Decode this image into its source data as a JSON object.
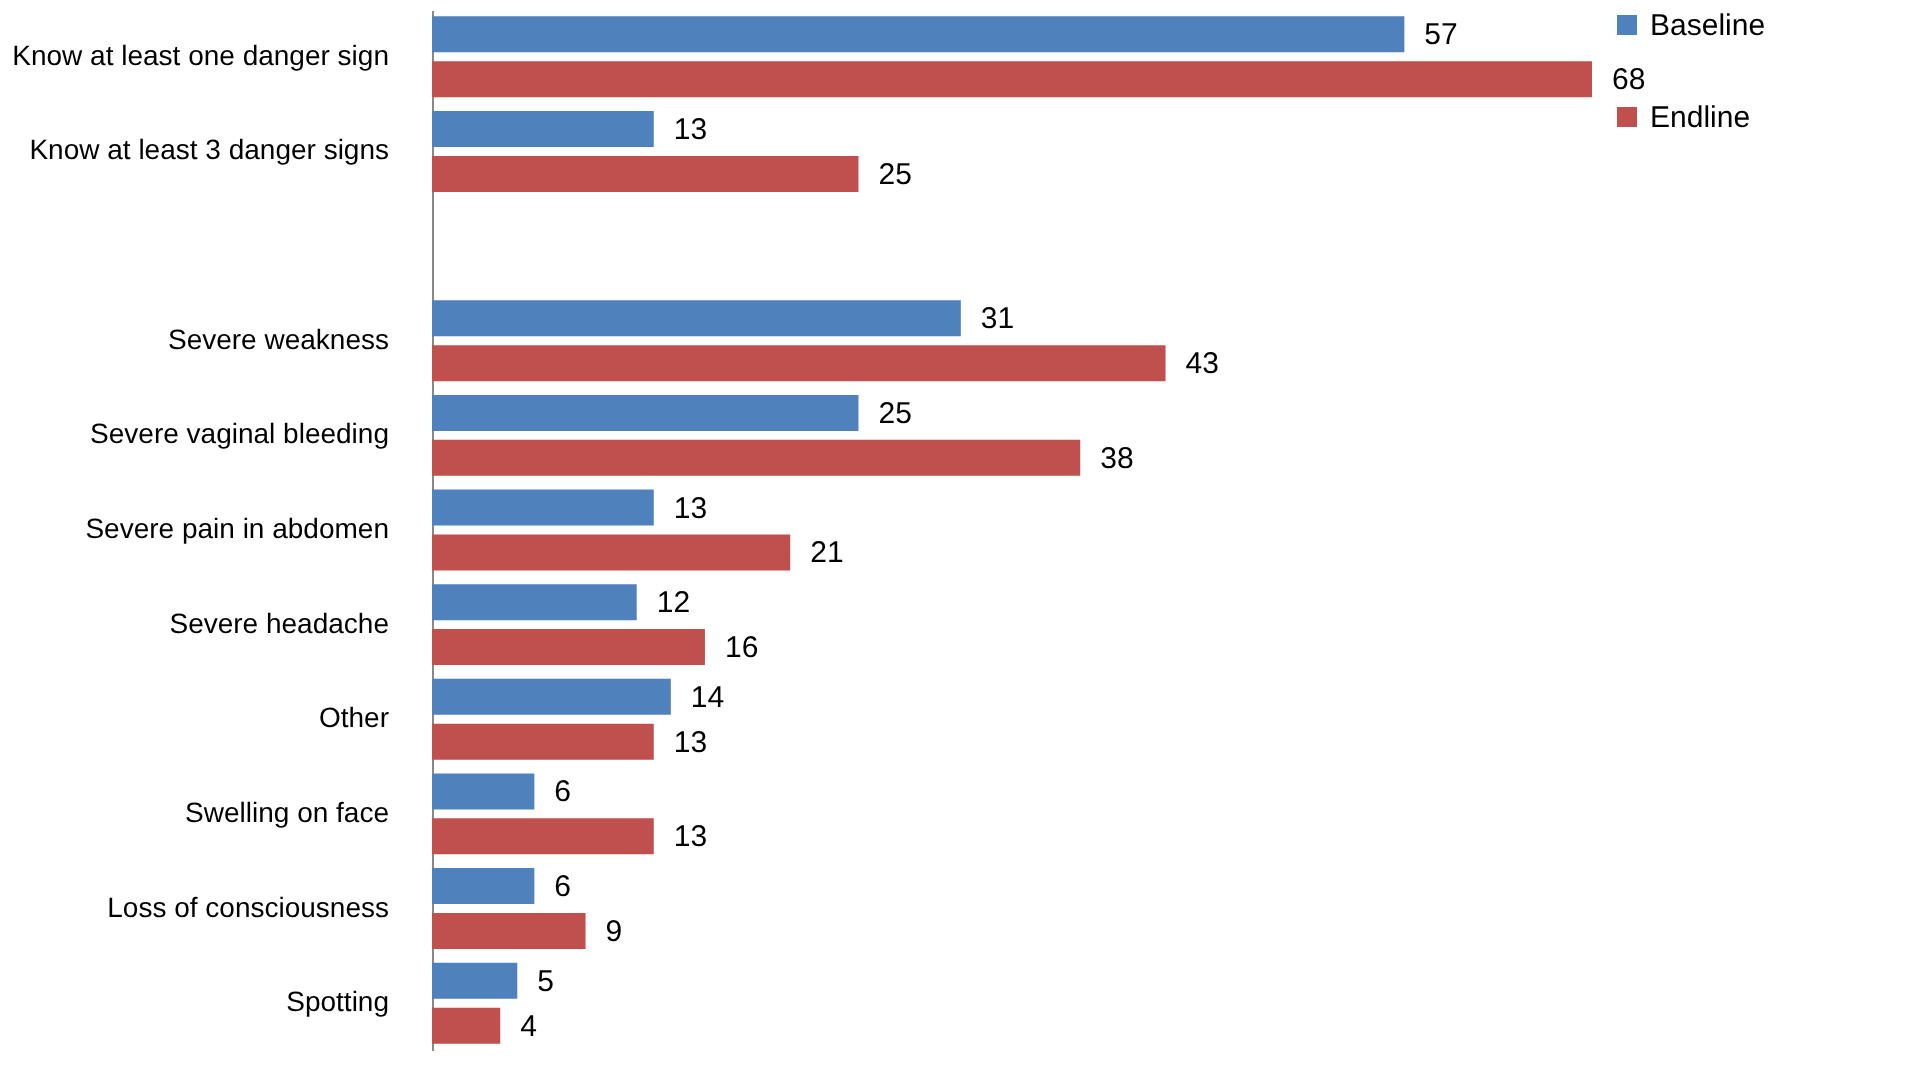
{
  "chart_data": {
    "type": "bar",
    "orientation": "horizontal",
    "categories": [
      "Know at least one danger sign",
      "Know at least 3 danger signs",
      null,
      "Severe weakness",
      "Severe vaginal bleeding",
      "Severe pain in abdomen",
      "Severe headache",
      "Other",
      "Swelling on face",
      "Loss of consciousness",
      "Spotting"
    ],
    "series": [
      {
        "name": "Baseline",
        "color": "#4f81bd",
        "values": [
          57,
          13,
          null,
          31,
          25,
          13,
          12,
          14,
          6,
          6,
          5
        ]
      },
      {
        "name": "Endline",
        "color": "#c0504d",
        "values": [
          68,
          25,
          null,
          43,
          38,
          21,
          16,
          13,
          13,
          9,
          4
        ]
      }
    ],
    "data_labels": true,
    "legend": "right",
    "grid": false
  }
}
